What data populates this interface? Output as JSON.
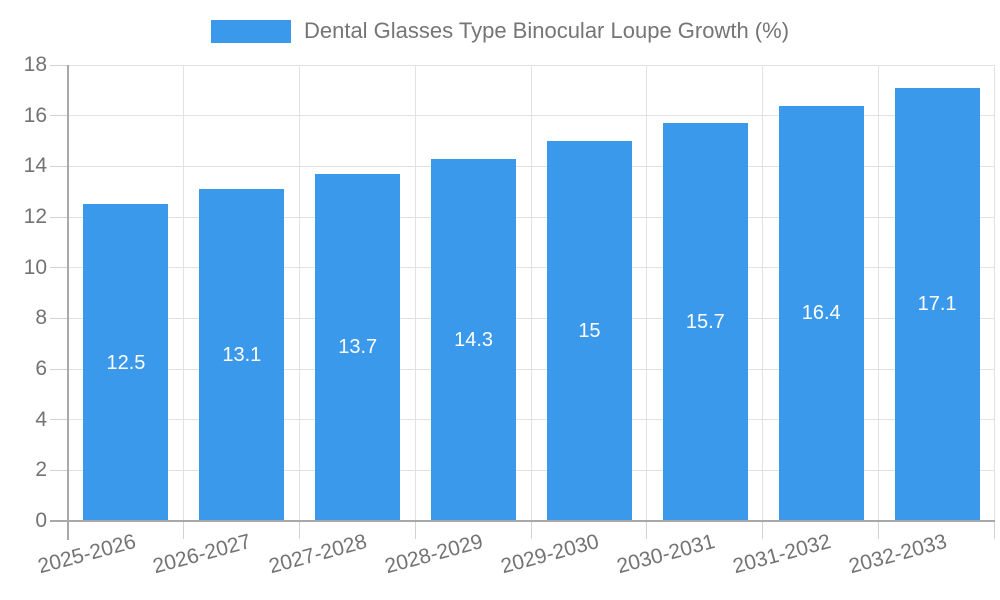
{
  "chart_data": {
    "type": "bar",
    "title": "Dental Glasses Type Binocular Loupe Growth (%)",
    "legend": {
      "position": "top",
      "label": "Dental Glasses Type Binocular Loupe Growth (%)"
    },
    "categories": [
      "2025-2026",
      "2026-2027",
      "2027-2028",
      "2028-2029",
      "2029-2030",
      "2030-2031",
      "2031-2032",
      "2032-2033"
    ],
    "values": [
      12.5,
      13.1,
      13.7,
      14.3,
      15,
      15.7,
      16.4,
      17.1
    ],
    "value_labels": [
      "12.5",
      "13.1",
      "13.7",
      "14.3",
      "15",
      "15.7",
      "16.4",
      "17.1"
    ],
    "xlabel": "",
    "ylabel": "",
    "ylim": [
      0,
      18
    ],
    "y_ticks": [
      0,
      2,
      4,
      6,
      8,
      10,
      12,
      14,
      16,
      18
    ],
    "grid": "horizontal and vertical light gray gridlines",
    "x_tick_label_rotation_deg": -15,
    "colors": {
      "bar": "#3b99ec",
      "value_label": "#ffffff",
      "grid": "#e2e2e2",
      "tick": "#d2d2d2",
      "axis": "#a8a8a8",
      "text": "#737373",
      "legend_text": "#757575",
      "background": "#ffffff"
    }
  }
}
